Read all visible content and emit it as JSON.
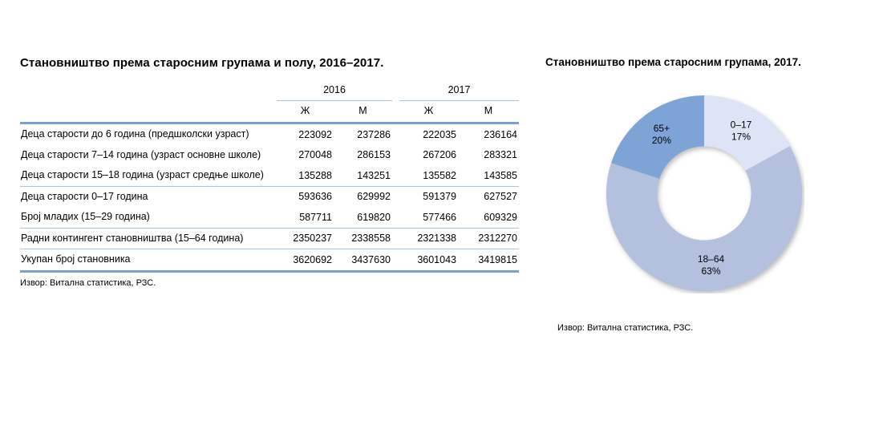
{
  "table": {
    "title": "Становништво према старосним групама и полу, 2016–2017.",
    "year_groups": [
      "2016",
      "2017"
    ],
    "sex_headers": [
      "Ж",
      "М",
      "Ж",
      "М"
    ],
    "rows": [
      {
        "label": "Деца старости до 6 година (предшколски узраст)",
        "values": [
          "223092",
          "237286",
          "222035",
          "236164"
        ]
      },
      {
        "label": "Деца старости 7–14 година (узраст основне школе)",
        "values": [
          "270048",
          "286153",
          "267206",
          "283321"
        ]
      },
      {
        "label": "Деца старости 15–18 година (узраст средње школе)",
        "values": [
          "135288",
          "143251",
          "135582",
          "143585"
        ]
      },
      {
        "label": "Деца старости 0–17 година",
        "values": [
          "593636",
          "629992",
          "591379",
          "627527"
        ]
      },
      {
        "label": "Број младих (15–29 година)",
        "values": [
          "587711",
          "619820",
          "577466",
          "609329"
        ]
      },
      {
        "label": "Радни контингент становништва (15–64 година)",
        "values": [
          "2350237",
          "2338558",
          "2321338",
          "2312270"
        ]
      },
      {
        "label": "Укупан број становника",
        "values": [
          "3620692",
          "3437630",
          "3601043",
          "3419815"
        ]
      }
    ],
    "source": "Извор: Витална статистика, РЗС."
  },
  "chart": {
    "title": "Становништво према старосним групама, 2017.",
    "source": "Извор: Витална статистика, РЗС."
  },
  "chart_data": {
    "type": "pie",
    "subtype": "donut",
    "title": "Становништво према старосним групама, 2017.",
    "labels": [
      "0–17",
      "18–64",
      "65+"
    ],
    "values": [
      17,
      63,
      20
    ],
    "unit": "%",
    "colors": [
      "#dce4f6",
      "#b3c0de",
      "#7ea4d7"
    ],
    "start_angle_deg": 0,
    "direction": "clockwise",
    "inner_radius_ratio": 0.48,
    "legend": "none",
    "labels_inside": true
  },
  "colors": {
    "rule_thick": "#7ba0d0",
    "rule_thin": "#a9c4e2"
  }
}
